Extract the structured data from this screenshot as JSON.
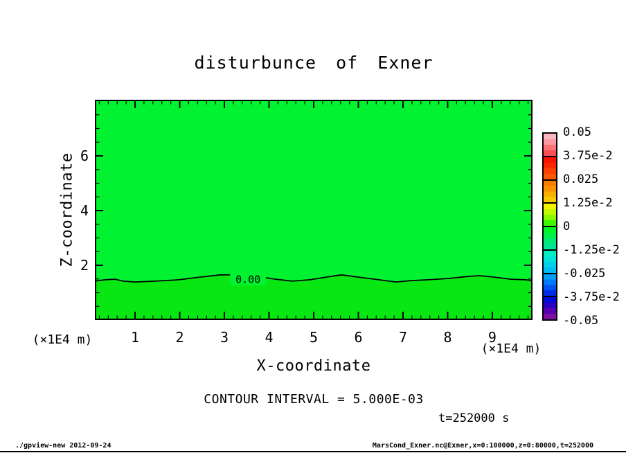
{
  "footer": {
    "left": "./gpview-new  2012-09-24",
    "right": "MarsCond_Exner.nc@Exner,x=0:100000,z=0:80000,t=252000"
  },
  "chart_data": {
    "type": "filled-contour",
    "title": "disturbunce of Exner",
    "xlabel": "X-coordinate",
    "ylabel": "Z-coordinate",
    "axis_unit": "(×1E4 m)",
    "contour_interval_text": "CONTOUR INTERVAL = 5.000E-03",
    "time_text": "t=252000 s",
    "xlim": [
      0.1,
      9.9
    ],
    "zlim": [
      0,
      8.05
    ],
    "x_major_ticks": [
      1,
      2,
      3,
      4,
      5,
      6,
      7,
      8,
      9
    ],
    "x_minor_step": 0.2,
    "z_major_ticks": [
      2,
      4,
      6
    ],
    "z_minor_step": 0.5,
    "grid": false,
    "fill_above": "#00f231",
    "fill_below": "#09e713",
    "zero_contour": {
      "label": "0.00",
      "label_at": [
        3.53,
        1.49
      ],
      "points": [
        [
          0.1,
          1.42
        ],
        [
          0.33,
          1.47
        ],
        [
          0.55,
          1.49
        ],
        [
          0.74,
          1.42
        ],
        [
          1.0,
          1.39
        ],
        [
          1.46,
          1.42
        ],
        [
          1.98,
          1.47
        ],
        [
          2.47,
          1.57
        ],
        [
          2.91,
          1.65
        ],
        [
          3.4,
          1.65
        ],
        [
          3.74,
          1.59
        ],
        [
          4.15,
          1.49
        ],
        [
          4.52,
          1.42
        ],
        [
          4.92,
          1.47
        ],
        [
          5.29,
          1.57
        ],
        [
          5.62,
          1.65
        ],
        [
          5.99,
          1.57
        ],
        [
          6.46,
          1.47
        ],
        [
          6.84,
          1.39
        ],
        [
          7.19,
          1.44
        ],
        [
          7.56,
          1.47
        ],
        [
          8.02,
          1.52
        ],
        [
          8.44,
          1.59
        ],
        [
          8.72,
          1.62
        ],
        [
          9.03,
          1.57
        ],
        [
          9.42,
          1.49
        ],
        [
          9.73,
          1.47
        ],
        [
          9.9,
          1.44
        ]
      ]
    },
    "colorbar": {
      "tick_labels": [
        "0.05",
        "3.75e-2",
        "0.025",
        "1.25e-2",
        "0",
        "-1.25e-2",
        "-0.025",
        "-3.75e-2",
        "-0.05"
      ],
      "block_colors": [
        [
          "#fbb7c0",
          "#fa99a2",
          "#f97379",
          "#f94e52"
        ],
        [
          "#fa1400",
          "#f92800",
          "#f94200",
          "#f95a00"
        ],
        [
          "#f97c00",
          "#f99400",
          "#f9ae00",
          "#f9c800"
        ],
        [
          "#f4f300",
          "#c4f700",
          "#88f800",
          "#3ef800"
        ],
        [
          "#00f628",
          "#00ef4a",
          "#00e972",
          "#00e496"
        ],
        [
          "#00eec4",
          "#00e4da",
          "#00d0ec",
          "#00bcf4"
        ],
        [
          "#00a0f8",
          "#007af8",
          "#0052f0",
          "#002ce8"
        ],
        [
          "#000ad8",
          "#2a00c2",
          "#5600ae",
          "#7e10a0"
        ]
      ]
    }
  }
}
